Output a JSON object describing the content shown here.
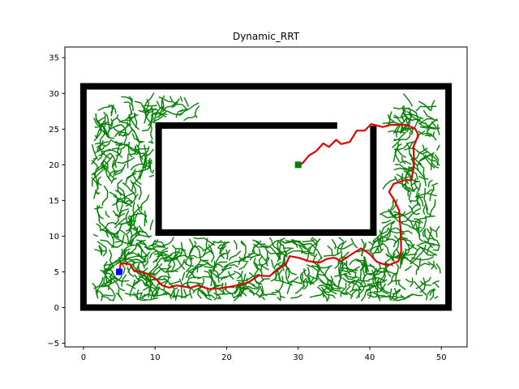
{
  "chart_data": {
    "type": "scatter",
    "title": "Dynamic_RRT",
    "xlabel": "",
    "ylabel": "",
    "xlim": [
      -2.6,
      53.6
    ],
    "ylim": [
      -5.5,
      36.5
    ],
    "xticks": [
      0,
      10,
      20,
      30,
      40,
      50
    ],
    "yticks": [
      -5,
      0,
      5,
      10,
      15,
      20,
      25,
      30,
      35
    ],
    "grid": false,
    "obstacle_color": "#000000",
    "tree_color": "#008000",
    "path_color": "#e00000",
    "start_color": "#0000ff",
    "goal_color": "#008000",
    "boundary": [
      [
        0,
        0
      ],
      [
        0,
        31
      ],
      [
        51,
        31
      ],
      [
        51,
        0
      ],
      [
        0,
        0
      ]
    ],
    "walls": [
      [
        [
          10.5,
          25.5
        ],
        [
          35,
          25.5
        ]
      ],
      [
        [
          10.5,
          25.5
        ],
        [
          10.5,
          10.5
        ]
      ],
      [
        [
          10.5,
          10.5
        ],
        [
          40.5,
          10.5
        ]
      ],
      [
        [
          40.5,
          10.5
        ],
        [
          40.5,
          25
        ]
      ]
    ],
    "start": [
      5,
      5
    ],
    "goal": [
      30,
      20
    ],
    "path": [
      [
        5,
        5
      ],
      [
        5.2,
        6.2
      ],
      [
        6.5,
        6.1
      ],
      [
        7.1,
        5.1
      ],
      [
        8.5,
        4.9
      ],
      [
        9.9,
        4.2
      ],
      [
        11,
        3.1
      ],
      [
        12,
        2.8
      ],
      [
        13,
        3.1
      ],
      [
        15,
        2.8
      ],
      [
        16,
        3.1
      ],
      [
        17.5,
        2.6
      ],
      [
        19,
        2.7
      ],
      [
        21,
        3
      ],
      [
        23,
        3.5
      ],
      [
        24.5,
        4.5
      ],
      [
        26,
        4.4
      ],
      [
        27,
        5.2
      ],
      [
        28.3,
        6.1
      ],
      [
        28.8,
        7.2
      ],
      [
        30,
        7
      ],
      [
        31.5,
        6.5
      ],
      [
        33,
        6.3
      ],
      [
        34,
        6.8
      ],
      [
        35,
        7
      ],
      [
        36,
        6.5
      ],
      [
        37.5,
        7.5
      ],
      [
        38.8,
        8.3
      ],
      [
        40,
        7.5
      ],
      [
        41,
        6.4
      ],
      [
        42.5,
        5.9
      ],
      [
        44,
        6.5
      ],
      [
        44.4,
        8
      ],
      [
        44.3,
        11
      ],
      [
        44.1,
        13.6
      ],
      [
        43.4,
        15.1
      ],
      [
        42.7,
        16.2
      ],
      [
        43.3,
        17.3
      ],
      [
        45,
        17.9
      ],
      [
        45.8,
        17.8
      ],
      [
        46.2,
        20
      ],
      [
        46.1,
        22.5
      ],
      [
        46.8,
        24.2
      ],
      [
        46.3,
        25.1
      ],
      [
        45,
        25.6
      ],
      [
        43,
        25.6
      ],
      [
        41.8,
        25.3
      ],
      [
        40.2,
        25.7
      ],
      [
        39.3,
        24.8
      ],
      [
        38.2,
        24.8
      ],
      [
        37.2,
        23.2
      ],
      [
        36,
        22.9
      ],
      [
        35.3,
        23.5
      ],
      [
        34.3,
        22.5
      ],
      [
        33.5,
        23
      ],
      [
        32.5,
        21.9
      ],
      [
        31.5,
        21.3
      ],
      [
        30.6,
        20.2
      ],
      [
        30,
        20
      ]
    ],
    "tree_regions": [
      {
        "x": [
          1.3,
          10.0
        ],
        "y": [
          0.8,
          29.5
        ]
      },
      {
        "x": [
          10.0,
          16.0
        ],
        "y": [
          26.0,
          29.5
        ]
      },
      {
        "x": [
          8.0,
          21.0
        ],
        "y": [
          0.8,
          10.0
        ]
      },
      {
        "x": [
          21.0,
          40.0
        ],
        "y": [
          0.8,
          9.5
        ]
      },
      {
        "x": [
          40.0,
          49.5
        ],
        "y": [
          0.8,
          13.0
        ]
      },
      {
        "x": [
          43.0,
          49.5
        ],
        "y": [
          13.0,
          28.5
        ]
      }
    ]
  }
}
